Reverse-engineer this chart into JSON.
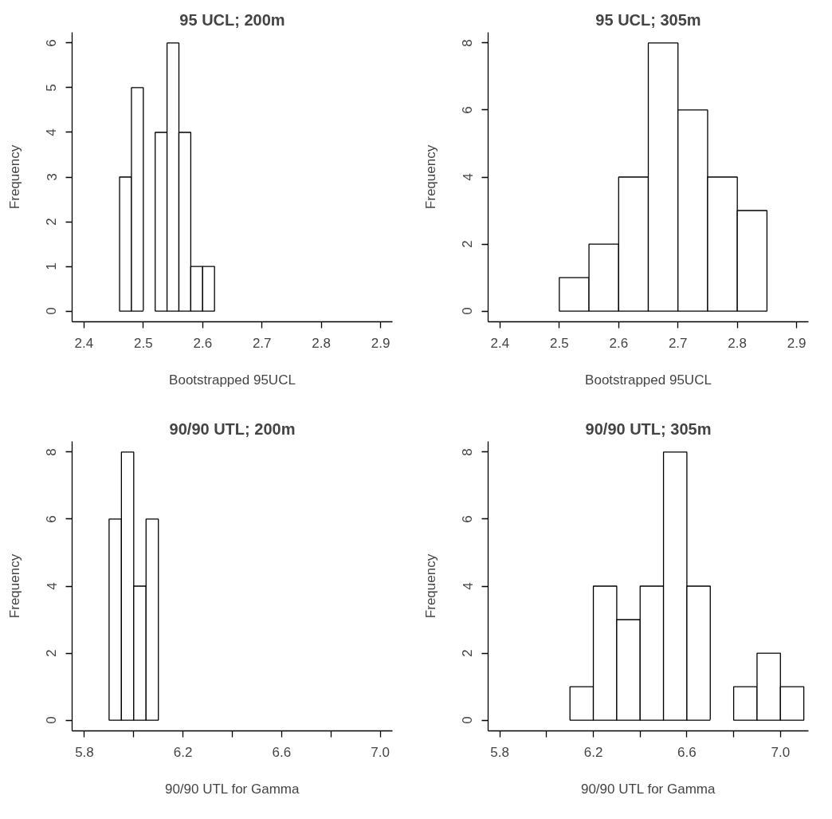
{
  "chart_data": [
    {
      "type": "histogram",
      "title": "95 UCL; 200m",
      "xlabel": "Bootstrapped 95UCL",
      "ylabel": "Frequency",
      "color": "#ffffff",
      "bins": [
        2.46,
        2.48,
        2.5,
        2.52,
        2.54,
        2.56,
        2.58,
        2.6,
        2.62
      ],
      "values": [
        3,
        5,
        0,
        4,
        6,
        4,
        1,
        1
      ],
      "xlim": [
        2.38,
        2.92
      ],
      "xticks": [
        2.4,
        2.5,
        2.6,
        2.7,
        2.8,
        2.9
      ],
      "ylim": [
        -0.24,
        6.24
      ],
      "yticks": [
        0,
        1,
        2,
        3,
        4,
        5,
        6
      ]
    },
    {
      "type": "histogram",
      "title": "95 UCL; 305m",
      "xlabel": "Bootstrapped 95UCL",
      "ylabel": "Frequency",
      "color": "#ffffff",
      "bins": [
        2.5,
        2.55,
        2.6,
        2.65,
        2.7,
        2.75,
        2.8,
        2.85
      ],
      "values": [
        1,
        2,
        4,
        8,
        6,
        4,
        3
      ],
      "xlim": [
        2.38,
        2.92
      ],
      "xticks": [
        2.4,
        2.5,
        2.6,
        2.7,
        2.8,
        2.9
      ],
      "ylim": [
        -0.32,
        8.32
      ],
      "yticks": [
        0,
        2,
        4,
        6,
        8
      ]
    },
    {
      "type": "histogram",
      "title": "90/90 UTL; 200m",
      "xlabel": "90/90 UTL for Gamma",
      "ylabel": "Frequency",
      "color": "#ffffff",
      "bins": [
        5.9,
        5.95,
        6.0,
        6.05,
        6.1
      ],
      "values": [
        6,
        8,
        4,
        6
      ],
      "xlim": [
        5.75,
        7.05
      ],
      "xticks": [
        5.8,
        {
          "value": 6.0,
          "label": null
        },
        6.2,
        {
          "value": 6.4,
          "label": null
        },
        6.6,
        {
          "value": 6.8,
          "label": null
        },
        {
          "value": 7.0,
          "label": "7.0"
        }
      ],
      "ylim": [
        -0.32,
        8.32
      ],
      "yticks": [
        0,
        2,
        4,
        6,
        8
      ]
    },
    {
      "type": "histogram",
      "title": "90/90 UTL; 305m",
      "xlabel": "90/90 UTL for Gamma",
      "ylabel": "Frequency",
      "color": "#ffffff",
      "bins": [
        6.1,
        6.2,
        6.3,
        6.4,
        6.5,
        6.6,
        6.7,
        6.8,
        6.9,
        7.0,
        7.1
      ],
      "values": [
        1,
        4,
        3,
        4,
        8,
        4,
        0,
        1,
        2,
        1
      ],
      "xlim": [
        5.75,
        7.12
      ],
      "xticks": [
        5.8,
        {
          "value": 6.0,
          "label": null
        },
        6.2,
        {
          "value": 6.4,
          "label": null
        },
        6.6,
        {
          "value": 6.8,
          "label": null
        },
        {
          "value": 7.0,
          "label": "7.0"
        }
      ],
      "ylim": [
        -0.32,
        8.32
      ],
      "yticks": [
        0,
        2,
        4,
        6,
        8
      ]
    }
  ]
}
